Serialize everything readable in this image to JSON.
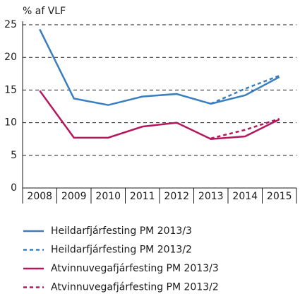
{
  "chart_data": {
    "type": "line",
    "y_label": "% af VLF",
    "categories": [
      "2008",
      "2009",
      "2010",
      "2011",
      "2012",
      "2013",
      "2014",
      "2015"
    ],
    "series": [
      {
        "name": "Heildarfjárfesting PM 2013/3",
        "color": "#3a7ebf",
        "line_style": "solid",
        "values": [
          24.3,
          13.7,
          12.7,
          14.0,
          14.4,
          12.9,
          14.2,
          17.0
        ]
      },
      {
        "name": "Heildarfjárfesting PM 2013/2",
        "color": "#3a7ebf",
        "line_style": "dashed",
        "values": [
          null,
          null,
          null,
          null,
          null,
          12.9,
          15.2,
          17.2
        ]
      },
      {
        "name": "Atvinnuvegafjárfesting PM 2013/3",
        "color": "#b5175e",
        "line_style": "solid",
        "values": [
          14.9,
          7.7,
          7.7,
          9.4,
          10.0,
          7.5,
          7.9,
          10.5
        ]
      },
      {
        "name": "Atvinnuvegafjárfesting PM 2013/2",
        "color": "#b5175e",
        "line_style": "dashed",
        "values": [
          null,
          null,
          null,
          null,
          null,
          7.6,
          8.9,
          10.6
        ]
      }
    ],
    "ylim": [
      0,
      25
    ],
    "yticks": [
      0,
      5,
      10,
      15,
      20,
      25
    ],
    "grid": true,
    "grid_style": "dashed"
  }
}
